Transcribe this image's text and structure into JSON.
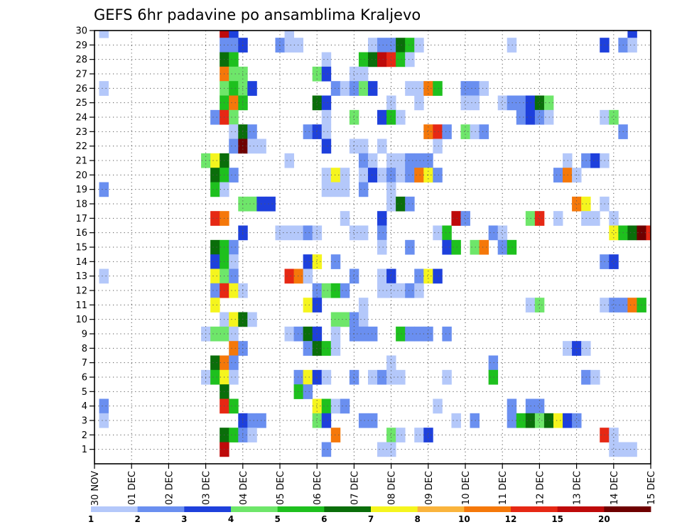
{
  "chart_data": {
    "type": "heatmap",
    "title": "GEFS 6hr padavine po ansamblima Kraljevo",
    "xlabel": "",
    "ylabel": "",
    "x_tick_labels": [
      "30 NOV",
      "01 DEC",
      "02 DEC",
      "03 DEC",
      "04 DEC",
      "05 DEC",
      "06 DEC",
      "07 DEC",
      "08 DEC",
      "09 DEC",
      "10 DEC",
      "11 DEC",
      "12 DEC",
      "13 DEC",
      "14 DEC",
      "15 DEC"
    ],
    "y_tick_labels": [
      "1",
      "2",
      "3",
      "4",
      "5",
      "6",
      "7",
      "8",
      "9",
      "10",
      "11",
      "12",
      "13",
      "14",
      "15",
      "16",
      "17",
      "18",
      "19",
      "20",
      "21",
      "22",
      "23",
      "24",
      "25",
      "26",
      "27",
      "28",
      "29",
      "30"
    ],
    "xlim": [
      0,
      15
    ],
    "ylim": [
      0,
      30
    ],
    "time_step_days": 0.25,
    "grid": true,
    "legend_placement": "bottom",
    "colorbar": {
      "labels": [
        "1",
        "2",
        "3",
        "4",
        "5",
        "6",
        "7",
        "8",
        "10",
        "12",
        "15",
        "20"
      ],
      "colors": [
        "#b4c8fa",
        "#6a8ff0",
        "#1e40dc",
        "#6ee66a",
        "#1ec01e",
        "#0a6e0a",
        "#f5f51e",
        "#fab43c",
        "#f5780a",
        "#e62814",
        "#be0a0a",
        "#6e0000"
      ]
    },
    "cells_format": "[day_offset_from_30NOV, member, colorbar_level_index]",
    "cells": [
      [
        0.25,
        30,
        0
      ],
      [
        3.5,
        30,
        10
      ],
      [
        3.75,
        30,
        2
      ],
      [
        5.25,
        30,
        0
      ],
      [
        14.5,
        30,
        2
      ],
      [
        3.5,
        29,
        1
      ],
      [
        3.75,
        29,
        1
      ],
      [
        4.0,
        29,
        2
      ],
      [
        5.0,
        29,
        1
      ],
      [
        5.25,
        29,
        0
      ],
      [
        5.5,
        29,
        0
      ],
      [
        7.5,
        29,
        0
      ],
      [
        7.75,
        29,
        1
      ],
      [
        8.0,
        29,
        1
      ],
      [
        8.25,
        29,
        5
      ],
      [
        8.5,
        29,
        4
      ],
      [
        8.75,
        29,
        0
      ],
      [
        11.25,
        29,
        0
      ],
      [
        13.75,
        29,
        2
      ],
      [
        14.25,
        29,
        1
      ],
      [
        14.5,
        29,
        0
      ],
      [
        3.5,
        28,
        5
      ],
      [
        3.75,
        28,
        4
      ],
      [
        6.25,
        28,
        0
      ],
      [
        7.25,
        28,
        4
      ],
      [
        7.5,
        28,
        5
      ],
      [
        7.75,
        28,
        10
      ],
      [
        8.0,
        28,
        9
      ],
      [
        8.25,
        28,
        4
      ],
      [
        8.5,
        28,
        0
      ],
      [
        3.5,
        27,
        8
      ],
      [
        3.75,
        27,
        3
      ],
      [
        4.0,
        27,
        3
      ],
      [
        6.0,
        27,
        3
      ],
      [
        6.25,
        27,
        2
      ],
      [
        7.0,
        27,
        0
      ],
      [
        7.25,
        27,
        0
      ],
      [
        0.25,
        26,
        0
      ],
      [
        3.5,
        26,
        3
      ],
      [
        3.75,
        26,
        4
      ],
      [
        4.0,
        26,
        3
      ],
      [
        4.25,
        26,
        2
      ],
      [
        6.5,
        26,
        1
      ],
      [
        6.75,
        26,
        0
      ],
      [
        7.0,
        26,
        1
      ],
      [
        7.25,
        26,
        3
      ],
      [
        7.5,
        26,
        2
      ],
      [
        8.5,
        26,
        0
      ],
      [
        8.75,
        26,
        0
      ],
      [
        9.0,
        26,
        8
      ],
      [
        9.25,
        26,
        4
      ],
      [
        10.0,
        26,
        1
      ],
      [
        10.25,
        26,
        1
      ],
      [
        10.5,
        26,
        0
      ],
      [
        3.5,
        25,
        4
      ],
      [
        3.75,
        25,
        8
      ],
      [
        4.0,
        25,
        4
      ],
      [
        6.0,
        25,
        5
      ],
      [
        6.25,
        25,
        2
      ],
      [
        8.0,
        25,
        0
      ],
      [
        8.75,
        25,
        0
      ],
      [
        10.0,
        25,
        0
      ],
      [
        10.25,
        25,
        0
      ],
      [
        11.0,
        25,
        0
      ],
      [
        11.25,
        25,
        1
      ],
      [
        11.5,
        25,
        1
      ],
      [
        11.75,
        25,
        2
      ],
      [
        12.0,
        25,
        5
      ],
      [
        12.25,
        25,
        3
      ],
      [
        3.25,
        24,
        1
      ],
      [
        3.5,
        24,
        9
      ],
      [
        3.75,
        24,
        3
      ],
      [
        6.25,
        24,
        0
      ],
      [
        7.0,
        24,
        3
      ],
      [
        7.75,
        24,
        2
      ],
      [
        8.0,
        24,
        4
      ],
      [
        8.25,
        24,
        0
      ],
      [
        11.5,
        24,
        1
      ],
      [
        11.75,
        24,
        2
      ],
      [
        12.0,
        24,
        1
      ],
      [
        12.25,
        24,
        0
      ],
      [
        13.75,
        24,
        0
      ],
      [
        14.0,
        24,
        3
      ],
      [
        3.75,
        23,
        0
      ],
      [
        4.0,
        23,
        5
      ],
      [
        4.25,
        23,
        1
      ],
      [
        5.75,
        23,
        1
      ],
      [
        6.0,
        23,
        2
      ],
      [
        6.25,
        23,
        0
      ],
      [
        9.0,
        23,
        8
      ],
      [
        9.25,
        23,
        9
      ],
      [
        9.5,
        23,
        1
      ],
      [
        10.0,
        23,
        3
      ],
      [
        10.25,
        23,
        0
      ],
      [
        10.5,
        23,
        1
      ],
      [
        14.25,
        23,
        1
      ],
      [
        3.75,
        22,
        1
      ],
      [
        4.0,
        22,
        11
      ],
      [
        4.25,
        22,
        0
      ],
      [
        4.5,
        22,
        0
      ],
      [
        6.25,
        22,
        2
      ],
      [
        7.0,
        22,
        0
      ],
      [
        7.25,
        22,
        0
      ],
      [
        7.75,
        22,
        0
      ],
      [
        9.25,
        22,
        0
      ],
      [
        3.0,
        21,
        3
      ],
      [
        3.25,
        21,
        6
      ],
      [
        3.5,
        21,
        5
      ],
      [
        5.25,
        21,
        0
      ],
      [
        7.25,
        21,
        1
      ],
      [
        7.5,
        21,
        0
      ],
      [
        8.0,
        21,
        0
      ],
      [
        8.25,
        21,
        0
      ],
      [
        8.5,
        21,
        1
      ],
      [
        8.75,
        21,
        1
      ],
      [
        9.0,
        21,
        1
      ],
      [
        12.75,
        21,
        0
      ],
      [
        13.25,
        21,
        1
      ],
      [
        13.5,
        21,
        2
      ],
      [
        13.75,
        21,
        0
      ],
      [
        3.25,
        20,
        5
      ],
      [
        3.5,
        20,
        4
      ],
      [
        3.75,
        20,
        1
      ],
      [
        6.25,
        20,
        0
      ],
      [
        6.5,
        20,
        6
      ],
      [
        6.75,
        20,
        0
      ],
      [
        7.25,
        20,
        0
      ],
      [
        7.5,
        20,
        2
      ],
      [
        7.75,
        20,
        0
      ],
      [
        8.0,
        20,
        1
      ],
      [
        8.25,
        20,
        0
      ],
      [
        8.5,
        20,
        1
      ],
      [
        8.75,
        20,
        8
      ],
      [
        9.0,
        20,
        6
      ],
      [
        9.25,
        20,
        1
      ],
      [
        12.5,
        20,
        1
      ],
      [
        12.75,
        20,
        8
      ],
      [
        13.0,
        20,
        0
      ],
      [
        0.25,
        19,
        1
      ],
      [
        3.25,
        19,
        4
      ],
      [
        3.5,
        19,
        0
      ],
      [
        6.25,
        19,
        0
      ],
      [
        6.5,
        19,
        0
      ],
      [
        6.75,
        19,
        0
      ],
      [
        7.25,
        19,
        1
      ],
      [
        8.0,
        19,
        0
      ],
      [
        4.0,
        18,
        3
      ],
      [
        4.25,
        18,
        3
      ],
      [
        4.5,
        18,
        2
      ],
      [
        4.75,
        18,
        2
      ],
      [
        8.0,
        18,
        0
      ],
      [
        8.25,
        18,
        5
      ],
      [
        8.5,
        18,
        1
      ],
      [
        13.0,
        18,
        8
      ],
      [
        13.25,
        18,
        6
      ],
      [
        13.75,
        18,
        0
      ],
      [
        3.25,
        17,
        9
      ],
      [
        3.5,
        17,
        8
      ],
      [
        6.75,
        17,
        0
      ],
      [
        7.75,
        17,
        2
      ],
      [
        9.75,
        17,
        10
      ],
      [
        10.0,
        17,
        1
      ],
      [
        11.75,
        17,
        3
      ],
      [
        12.0,
        17,
        9
      ],
      [
        12.5,
        17,
        0
      ],
      [
        13.25,
        17,
        0
      ],
      [
        13.5,
        17,
        0
      ],
      [
        14.0,
        17,
        0
      ],
      [
        4.0,
        16,
        2
      ],
      [
        5.0,
        16,
        0
      ],
      [
        5.25,
        16,
        0
      ],
      [
        5.5,
        16,
        0
      ],
      [
        5.75,
        16,
        1
      ],
      [
        6.0,
        16,
        0
      ],
      [
        7.0,
        16,
        0
      ],
      [
        7.25,
        16,
        0
      ],
      [
        7.75,
        16,
        1
      ],
      [
        9.25,
        16,
        0
      ],
      [
        9.5,
        16,
        4
      ],
      [
        10.75,
        16,
        1
      ],
      [
        11.0,
        16,
        0
      ],
      [
        14.0,
        16,
        6
      ],
      [
        14.25,
        16,
        4
      ],
      [
        14.5,
        16,
        5
      ],
      [
        14.75,
        16,
        11
      ],
      [
        15.0,
        16,
        9
      ],
      [
        3.25,
        15,
        5
      ],
      [
        3.5,
        15,
        4
      ],
      [
        3.75,
        15,
        1
      ],
      [
        7.75,
        15,
        0
      ],
      [
        8.5,
        15,
        1
      ],
      [
        9.5,
        15,
        2
      ],
      [
        9.75,
        15,
        4
      ],
      [
        10.25,
        15,
        3
      ],
      [
        10.5,
        15,
        8
      ],
      [
        11.0,
        15,
        1
      ],
      [
        11.25,
        15,
        4
      ],
      [
        3.25,
        14,
        2
      ],
      [
        3.5,
        14,
        4
      ],
      [
        3.75,
        14,
        0
      ],
      [
        5.75,
        14,
        2
      ],
      [
        6.0,
        14,
        6
      ],
      [
        6.5,
        14,
        1
      ],
      [
        13.75,
        14,
        1
      ],
      [
        14.0,
        14,
        2
      ],
      [
        0.25,
        13,
        0
      ],
      [
        3.25,
        13,
        6
      ],
      [
        3.5,
        13,
        3
      ],
      [
        3.75,
        13,
        1
      ],
      [
        5.25,
        13,
        9
      ],
      [
        5.5,
        13,
        8
      ],
      [
        5.75,
        13,
        0
      ],
      [
        7.0,
        13,
        1
      ],
      [
        7.75,
        13,
        0
      ],
      [
        8.0,
        13,
        2
      ],
      [
        8.75,
        13,
        1
      ],
      [
        9.0,
        13,
        6
      ],
      [
        9.25,
        13,
        2
      ],
      [
        3.25,
        12,
        1
      ],
      [
        3.5,
        12,
        9
      ],
      [
        3.75,
        12,
        6
      ],
      [
        4.0,
        12,
        0
      ],
      [
        6.0,
        12,
        1
      ],
      [
        6.25,
        12,
        3
      ],
      [
        6.5,
        12,
        4
      ],
      [
        6.75,
        12,
        1
      ],
      [
        7.75,
        12,
        0
      ],
      [
        8.0,
        12,
        0
      ],
      [
        8.25,
        12,
        0
      ],
      [
        8.5,
        12,
        1
      ],
      [
        8.75,
        12,
        0
      ],
      [
        3.25,
        11,
        6
      ],
      [
        5.75,
        11,
        6
      ],
      [
        6.0,
        11,
        2
      ],
      [
        7.25,
        11,
        0
      ],
      [
        11.75,
        11,
        0
      ],
      [
        12.0,
        11,
        3
      ],
      [
        13.75,
        11,
        0
      ],
      [
        14.0,
        11,
        1
      ],
      [
        14.25,
        11,
        1
      ],
      [
        14.5,
        11,
        8
      ],
      [
        14.75,
        11,
        4
      ],
      [
        3.5,
        10,
        0
      ],
      [
        3.75,
        10,
        6
      ],
      [
        4.0,
        10,
        5
      ],
      [
        4.25,
        10,
        0
      ],
      [
        6.5,
        10,
        3
      ],
      [
        6.75,
        10,
        3
      ],
      [
        7.0,
        10,
        1
      ],
      [
        7.25,
        10,
        0
      ],
      [
        3.0,
        9,
        0
      ],
      [
        3.25,
        9,
        3
      ],
      [
        3.5,
        9,
        3
      ],
      [
        3.75,
        9,
        0
      ],
      [
        5.25,
        9,
        0
      ],
      [
        5.5,
        9,
        1
      ],
      [
        5.75,
        9,
        5
      ],
      [
        6.0,
        9,
        2
      ],
      [
        6.5,
        9,
        0
      ],
      [
        7.0,
        9,
        1
      ],
      [
        7.25,
        9,
        1
      ],
      [
        7.5,
        9,
        1
      ],
      [
        8.25,
        9,
        4
      ],
      [
        8.5,
        9,
        1
      ],
      [
        8.75,
        9,
        1
      ],
      [
        9.0,
        9,
        1
      ],
      [
        9.5,
        9,
        1
      ],
      [
        3.75,
        8,
        8
      ],
      [
        4.0,
        8,
        1
      ],
      [
        5.75,
        8,
        1
      ],
      [
        6.0,
        8,
        5
      ],
      [
        6.25,
        8,
        4
      ],
      [
        6.5,
        8,
        0
      ],
      [
        12.75,
        8,
        0
      ],
      [
        13.0,
        8,
        2
      ],
      [
        13.25,
        8,
        0
      ],
      [
        3.25,
        7,
        5
      ],
      [
        3.5,
        7,
        8
      ],
      [
        3.75,
        7,
        1
      ],
      [
        8.0,
        7,
        0
      ],
      [
        10.75,
        7,
        1
      ],
      [
        3.0,
        6,
        0
      ],
      [
        3.25,
        6,
        4
      ],
      [
        3.5,
        6,
        6
      ],
      [
        3.75,
        6,
        0
      ],
      [
        5.5,
        6,
        1
      ],
      [
        5.75,
        6,
        6
      ],
      [
        6.0,
        6,
        2
      ],
      [
        6.25,
        6,
        0
      ],
      [
        7.0,
        6,
        1
      ],
      [
        7.5,
        6,
        0
      ],
      [
        7.75,
        6,
        1
      ],
      [
        8.0,
        6,
        0
      ],
      [
        8.25,
        6,
        0
      ],
      [
        9.5,
        6,
        0
      ],
      [
        10.75,
        6,
        4
      ],
      [
        13.25,
        6,
        1
      ],
      [
        13.5,
        6,
        0
      ],
      [
        3.5,
        5,
        5
      ],
      [
        5.5,
        5,
        4
      ],
      [
        5.75,
        5,
        1
      ],
      [
        0.25,
        4,
        1
      ],
      [
        3.5,
        4,
        9
      ],
      [
        3.75,
        4,
        4
      ],
      [
        6.0,
        4,
        6
      ],
      [
        6.25,
        4,
        4
      ],
      [
        6.5,
        4,
        0
      ],
      [
        6.75,
        4,
        1
      ],
      [
        9.25,
        4,
        0
      ],
      [
        11.25,
        4,
        1
      ],
      [
        11.75,
        4,
        1
      ],
      [
        12.0,
        4,
        1
      ],
      [
        0.25,
        3,
        0
      ],
      [
        4.0,
        3,
        2
      ],
      [
        4.25,
        3,
        1
      ],
      [
        4.5,
        3,
        1
      ],
      [
        6.0,
        3,
        3
      ],
      [
        6.25,
        3,
        2
      ],
      [
        7.25,
        3,
        1
      ],
      [
        7.5,
        3,
        1
      ],
      [
        9.75,
        3,
        0
      ],
      [
        10.25,
        3,
        1
      ],
      [
        11.25,
        3,
        1
      ],
      [
        11.5,
        3,
        4
      ],
      [
        11.75,
        3,
        5
      ],
      [
        12.0,
        3,
        3
      ],
      [
        12.25,
        3,
        5
      ],
      [
        12.5,
        3,
        6
      ],
      [
        12.75,
        3,
        2
      ],
      [
        13.0,
        3,
        1
      ],
      [
        3.5,
        2,
        5
      ],
      [
        3.75,
        2,
        4
      ],
      [
        4.0,
        2,
        1
      ],
      [
        4.25,
        2,
        0
      ],
      [
        6.5,
        2,
        8
      ],
      [
        8.0,
        2,
        3
      ],
      [
        8.25,
        2,
        0
      ],
      [
        8.75,
        2,
        0
      ],
      [
        9.0,
        2,
        2
      ],
      [
        13.75,
        2,
        9
      ],
      [
        14.0,
        2,
        0
      ],
      [
        3.5,
        1,
        10
      ],
      [
        6.25,
        1,
        1
      ],
      [
        7.75,
        1,
        0
      ],
      [
        8.0,
        1,
        0
      ],
      [
        14.0,
        1,
        0
      ],
      [
        14.25,
        1,
        0
      ],
      [
        14.5,
        1,
        0
      ]
    ]
  }
}
